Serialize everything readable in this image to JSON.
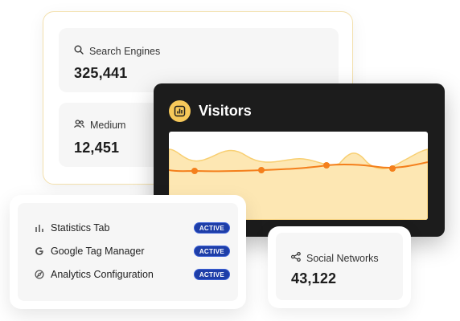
{
  "stats": {
    "search_engines": {
      "label": "Search Engines",
      "value": "325,441",
      "icon": "search-icon"
    },
    "medium": {
      "label": "Medium",
      "value": "12,451",
      "icon": "users-icon"
    }
  },
  "visitors": {
    "title": "Visitors",
    "icon": "chart-icon",
    "colors": {
      "area": "#fde7b3",
      "area_line": "#f8cf72",
      "trend": "#f47f1c",
      "point": "#f47f1c"
    }
  },
  "social": {
    "label": "Social Networks",
    "value": "43,122",
    "icon": "share-icon"
  },
  "integrations": {
    "items": [
      {
        "label": "Statistics Tab",
        "icon": "bar-chart-icon",
        "status": "ACTIVE"
      },
      {
        "label": "Google Tag Manager",
        "icon": "google-icon",
        "status": "ACTIVE"
      },
      {
        "label": "Analytics Configuration",
        "icon": "compass-icon",
        "status": "ACTIVE"
      }
    ],
    "badge_color": "#1e3ea8"
  }
}
